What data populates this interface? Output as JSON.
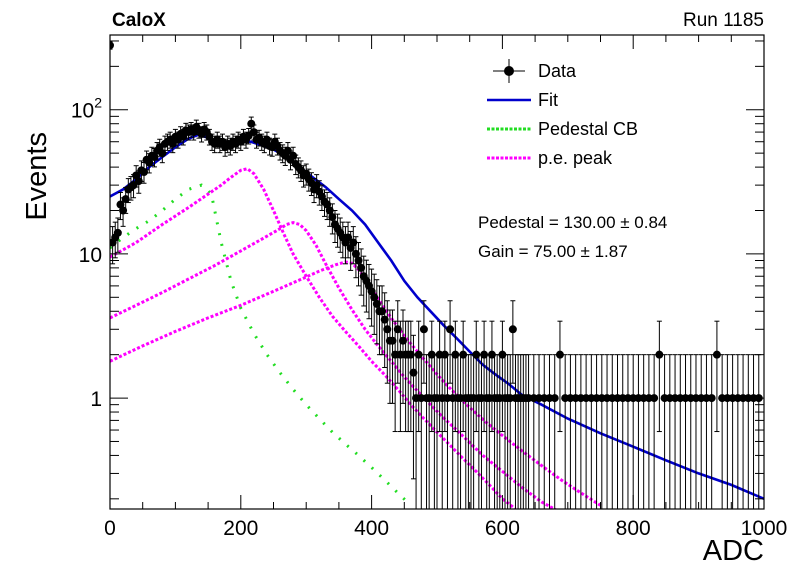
{
  "chart_data": {
    "type": "scatter",
    "title_left": "CaloX",
    "title_right": "Run 1185",
    "xlabel": "ADC",
    "ylabel": "Events",
    "xlim": [
      0,
      1000
    ],
    "ylim": [
      0.17,
      330
    ],
    "yscale": "log",
    "x_ticks": [
      {
        "v": 0,
        "label": "0"
      },
      {
        "v": 200,
        "label": "200"
      },
      {
        "v": 400,
        "label": "400"
      },
      {
        "v": 600,
        "label": "600"
      },
      {
        "v": 800,
        "label": "800"
      },
      {
        "v": 1000,
        "label": "1000"
      }
    ],
    "y_ticks": [
      {
        "v": 1,
        "label": "1"
      },
      {
        "v": 10,
        "label": "10"
      },
      {
        "v": 100,
        "base": "10",
        "exp": "2"
      }
    ],
    "legend": {
      "position": "top-right",
      "entries": [
        {
          "label": "Data",
          "kind": "marker",
          "color": "#000000"
        },
        {
          "label": "Fit",
          "kind": "line",
          "color": "#0000cc"
        },
        {
          "label": "Pedestal CB",
          "kind": "dotted",
          "color": "#22dd22"
        },
        {
          "label": "p.e. peak",
          "kind": "dotted",
          "color": "#ff00ff"
        }
      ]
    },
    "annotations": [
      "Pedestal = 130.00 ± 0.84",
      "Gain = 75.00 ± 1.87"
    ],
    "colors": {
      "data": "#000000",
      "fit": "#0000cc",
      "pedestal": "#22dd22",
      "pe_peak": "#ff00ff"
    },
    "data_points": [
      [
        0,
        280
      ],
      [
        4,
        12
      ],
      [
        8,
        13
      ],
      [
        12,
        14
      ],
      [
        16,
        22
      ],
      [
        20,
        20
      ],
      [
        24,
        24
      ],
      [
        28,
        28
      ],
      [
        32,
        29
      ],
      [
        36,
        30
      ],
      [
        40,
        35
      ],
      [
        44,
        32
      ],
      [
        48,
        38
      ],
      [
        52,
        37
      ],
      [
        56,
        45
      ],
      [
        60,
        43
      ],
      [
        64,
        48
      ],
      [
        68,
        47
      ],
      [
        72,
        52
      ],
      [
        76,
        55
      ],
      [
        80,
        50
      ],
      [
        84,
        58
      ],
      [
        88,
        60
      ],
      [
        92,
        62
      ],
      [
        96,
        58
      ],
      [
        100,
        65
      ],
      [
        104,
        62
      ],
      [
        108,
        68
      ],
      [
        112,
        65
      ],
      [
        116,
        72
      ],
      [
        120,
        70
      ],
      [
        124,
        73
      ],
      [
        128,
        70
      ],
      [
        132,
        76
      ],
      [
        136,
        72
      ],
      [
        140,
        68
      ],
      [
        144,
        73
      ],
      [
        148,
        70
      ],
      [
        152,
        65
      ],
      [
        156,
        60
      ],
      [
        160,
        58
      ],
      [
        164,
        62
      ],
      [
        168,
        58
      ],
      [
        172,
        60
      ],
      [
        176,
        55
      ],
      [
        180,
        58
      ],
      [
        184,
        56
      ],
      [
        188,
        60
      ],
      [
        192,
        58
      ],
      [
        196,
        62
      ],
      [
        200,
        60
      ],
      [
        204,
        65
      ],
      [
        208,
        62
      ],
      [
        212,
        66
      ],
      [
        216,
        80
      ],
      [
        220,
        70
      ],
      [
        224,
        62
      ],
      [
        228,
        64
      ],
      [
        232,
        60
      ],
      [
        236,
        58
      ],
      [
        240,
        62
      ],
      [
        244,
        56
      ],
      [
        248,
        55
      ],
      [
        252,
        60
      ],
      [
        256,
        56
      ],
      [
        260,
        52
      ],
      [
        264,
        50
      ],
      [
        268,
        48
      ],
      [
        272,
        52
      ],
      [
        276,
        45
      ],
      [
        280,
        48
      ],
      [
        284,
        42
      ],
      [
        288,
        40
      ],
      [
        292,
        38
      ],
      [
        296,
        35
      ],
      [
        300,
        36
      ],
      [
        304,
        33
      ],
      [
        308,
        31
      ],
      [
        312,
        28
      ],
      [
        316,
        30
      ],
      [
        320,
        27
      ],
      [
        324,
        25
      ],
      [
        328,
        23
      ],
      [
        332,
        22
      ],
      [
        336,
        20
      ],
      [
        340,
        18
      ],
      [
        344,
        16
      ],
      [
        348,
        15
      ],
      [
        352,
        14
      ],
      [
        356,
        13
      ],
      [
        360,
        12
      ],
      [
        364,
        13
      ],
      [
        368,
        11
      ],
      [
        372,
        12
      ],
      [
        376,
        10
      ],
      [
        380,
        9
      ],
      [
        384,
        8
      ],
      [
        388,
        7
      ],
      [
        392,
        6.5
      ],
      [
        396,
        6
      ],
      [
        400,
        5.5
      ],
      [
        404,
        5
      ],
      [
        408,
        4.5
      ],
      [
        412,
        4
      ],
      [
        416,
        4
      ],
      [
        420,
        3.5
      ],
      [
        424,
        3
      ],
      [
        428,
        2.5
      ],
      [
        432,
        2.5
      ],
      [
        436,
        2
      ],
      [
        440,
        3
      ],
      [
        444,
        2
      ],
      [
        448,
        2.5
      ],
      [
        452,
        2
      ],
      [
        456,
        2
      ],
      [
        460,
        2
      ],
      [
        464,
        1.5
      ],
      [
        468,
        1
      ],
      [
        472,
        2
      ],
      [
        476,
        1
      ],
      [
        480,
        3
      ],
      [
        484,
        1
      ],
      [
        488,
        1
      ],
      [
        492,
        2
      ],
      [
        496,
        1
      ],
      [
        500,
        1
      ],
      [
        504,
        2
      ],
      [
        508,
        1
      ],
      [
        512,
        2
      ],
      [
        516,
        1
      ],
      [
        520,
        3
      ],
      [
        524,
        1
      ],
      [
        528,
        2
      ],
      [
        532,
        1
      ],
      [
        536,
        1
      ],
      [
        540,
        2
      ],
      [
        544,
        1
      ],
      [
        548,
        1
      ],
      [
        552,
        1
      ],
      [
        556,
        1
      ],
      [
        560,
        2
      ],
      [
        564,
        1
      ],
      [
        568,
        1
      ],
      [
        572,
        2
      ],
      [
        576,
        1
      ],
      [
        580,
        1
      ],
      [
        584,
        2
      ],
      [
        588,
        1
      ],
      [
        592,
        1
      ],
      [
        596,
        1
      ],
      [
        600,
        2
      ],
      [
        604,
        1
      ],
      [
        608,
        1
      ],
      [
        612,
        1
      ],
      [
        616,
        3
      ],
      [
        620,
        1
      ],
      [
        624,
        1
      ],
      [
        628,
        1
      ],
      [
        632,
        1
      ],
      [
        636,
        1
      ],
      [
        640,
        1
      ],
      [
        648,
        1
      ],
      [
        656,
        1
      ],
      [
        664,
        1
      ],
      [
        672,
        1
      ],
      [
        680,
        1
      ],
      [
        688,
        2
      ],
      [
        696,
        1
      ],
      [
        704,
        1
      ],
      [
        712,
        1
      ],
      [
        720,
        1
      ],
      [
        728,
        1
      ],
      [
        736,
        1
      ],
      [
        744,
        1
      ],
      [
        752,
        1
      ],
      [
        760,
        1
      ],
      [
        768,
        1
      ],
      [
        776,
        1
      ],
      [
        784,
        1
      ],
      [
        792,
        1
      ],
      [
        800,
        1
      ],
      [
        808,
        1
      ],
      [
        816,
        1
      ],
      [
        824,
        1
      ],
      [
        832,
        1
      ],
      [
        840,
        2
      ],
      [
        848,
        1
      ],
      [
        856,
        1
      ],
      [
        864,
        1
      ],
      [
        872,
        1
      ],
      [
        880,
        1
      ],
      [
        888,
        1
      ],
      [
        896,
        1
      ],
      [
        904,
        1
      ],
      [
        912,
        1
      ],
      [
        920,
        1
      ],
      [
        928,
        2
      ],
      [
        936,
        1
      ],
      [
        944,
        1
      ],
      [
        952,
        1
      ],
      [
        960,
        1
      ],
      [
        968,
        1
      ],
      [
        976,
        1
      ],
      [
        984,
        1
      ],
      [
        992,
        1
      ]
    ],
    "fit_curve": [
      [
        0,
        25
      ],
      [
        20,
        28
      ],
      [
        40,
        33
      ],
      [
        60,
        40
      ],
      [
        80,
        47
      ],
      [
        100,
        55
      ],
      [
        120,
        63
      ],
      [
        135,
        67
      ],
      [
        150,
        64
      ],
      [
        165,
        60
      ],
      [
        185,
        60
      ],
      [
        200,
        60
      ],
      [
        215,
        60
      ],
      [
        230,
        57
      ],
      [
        250,
        53
      ],
      [
        270,
        47
      ],
      [
        290,
        40
      ],
      [
        310,
        34
      ],
      [
        330,
        29
      ],
      [
        350,
        24
      ],
      [
        370,
        20
      ],
      [
        390,
        16
      ],
      [
        410,
        12
      ],
      [
        430,
        9
      ],
      [
        450,
        6.5
      ],
      [
        470,
        5
      ],
      [
        490,
        4
      ],
      [
        510,
        3.2
      ],
      [
        530,
        2.6
      ],
      [
        550,
        2.1
      ],
      [
        570,
        1.7
      ],
      [
        590,
        1.45
      ],
      [
        610,
        1.25
      ],
      [
        630,
        1.05
      ],
      [
        660,
        0.9
      ],
      [
        700,
        0.72
      ],
      [
        750,
        0.57
      ],
      [
        800,
        0.46
      ],
      [
        850,
        0.37
      ],
      [
        900,
        0.3
      ],
      [
        950,
        0.25
      ],
      [
        1000,
        0.2
      ]
    ],
    "pedestal_curve": [
      [
        0,
        11
      ],
      [
        20,
        13
      ],
      [
        40,
        15
      ],
      [
        60,
        17
      ],
      [
        80,
        20
      ],
      [
        100,
        24
      ],
      [
        120,
        28
      ],
      [
        140,
        30
      ],
      [
        155,
        26
      ],
      [
        170,
        12
      ],
      [
        185,
        6.5
      ],
      [
        200,
        4.2
      ],
      [
        220,
        2.8
      ],
      [
        240,
        2
      ],
      [
        260,
        1.5
      ],
      [
        280,
        1.15
      ],
      [
        300,
        0.9
      ],
      [
        320,
        0.72
      ],
      [
        340,
        0.58
      ],
      [
        360,
        0.48
      ],
      [
        380,
        0.4
      ],
      [
        400,
        0.33
      ],
      [
        420,
        0.27
      ],
      [
        440,
        0.22
      ],
      [
        460,
        0.18
      ]
    ],
    "pe_peaks": [
      {
        "points": [
          [
            0,
            9.5
          ],
          [
            40,
            12
          ],
          [
            80,
            16
          ],
          [
            120,
            21
          ],
          [
            150,
            26
          ],
          [
            170,
            30
          ],
          [
            185,
            34
          ],
          [
            200,
            38
          ],
          [
            210,
            39
          ],
          [
            220,
            36
          ],
          [
            235,
            28
          ],
          [
            250,
            20
          ],
          [
            265,
            14
          ],
          [
            280,
            10
          ],
          [
            300,
            7
          ],
          [
            320,
            5
          ],
          [
            340,
            3.7
          ],
          [
            360,
            2.9
          ],
          [
            380,
            2.3
          ],
          [
            400,
            1.8
          ],
          [
            420,
            1.45
          ],
          [
            440,
            1.15
          ],
          [
            460,
            0.9
          ],
          [
            480,
            0.72
          ],
          [
            500,
            0.58
          ],
          [
            520,
            0.47
          ],
          [
            540,
            0.38
          ],
          [
            560,
            0.31
          ],
          [
            580,
            0.25
          ],
          [
            600,
            0.2
          ],
          [
            620,
            0.17
          ]
        ]
      },
      {
        "points": [
          [
            0,
            3.6
          ],
          [
            40,
            4.4
          ],
          [
            80,
            5.4
          ],
          [
            120,
            6.7
          ],
          [
            160,
            8.3
          ],
          [
            200,
            10.5
          ],
          [
            230,
            12.5
          ],
          [
            255,
            14.5
          ],
          [
            270,
            16
          ],
          [
            280,
            16.5
          ],
          [
            290,
            16
          ],
          [
            300,
            14.5
          ],
          [
            315,
            11.5
          ],
          [
            330,
            8.5
          ],
          [
            350,
            5.8
          ],
          [
            370,
            4.1
          ],
          [
            390,
            3
          ],
          [
            410,
            2.3
          ],
          [
            430,
            1.8
          ],
          [
            450,
            1.4
          ],
          [
            470,
            1.12
          ],
          [
            490,
            0.9
          ],
          [
            510,
            0.73
          ],
          [
            530,
            0.6
          ],
          [
            550,
            0.49
          ],
          [
            570,
            0.4
          ],
          [
            600,
            0.31
          ],
          [
            630,
            0.24
          ],
          [
            660,
            0.19
          ],
          [
            690,
            0.16
          ]
        ]
      },
      {
        "points": [
          [
            0,
            1.8
          ],
          [
            50,
            2.3
          ],
          [
            100,
            2.9
          ],
          [
            150,
            3.6
          ],
          [
            200,
            4.4
          ],
          [
            250,
            5.5
          ],
          [
            290,
            6.6
          ],
          [
            320,
            7.6
          ],
          [
            345,
            8.4
          ],
          [
            360,
            8.8
          ],
          [
            370,
            8.6
          ],
          [
            380,
            7.8
          ],
          [
            395,
            6.3
          ],
          [
            410,
            4.9
          ],
          [
            430,
            3.6
          ],
          [
            450,
            2.7
          ],
          [
            470,
            2.1
          ],
          [
            490,
            1.65
          ],
          [
            510,
            1.3
          ],
          [
            530,
            1.05
          ],
          [
            550,
            0.86
          ],
          [
            575,
            0.68
          ],
          [
            600,
            0.55
          ],
          [
            630,
            0.43
          ],
          [
            660,
            0.34
          ],
          [
            690,
            0.27
          ],
          [
            720,
            0.22
          ],
          [
            750,
            0.18
          ]
        ]
      }
    ]
  }
}
